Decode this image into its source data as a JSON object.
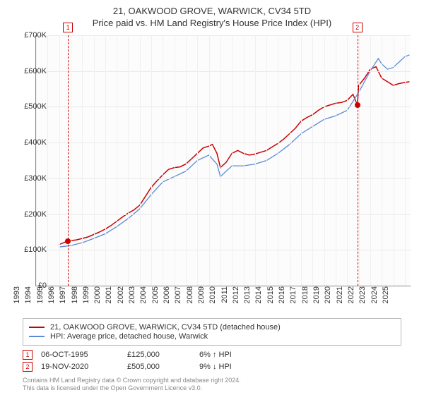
{
  "title": "21, OAKWOOD GROVE, WARWICK, CV34 5TD",
  "subtitle": "Price paid vs. HM Land Registry's House Price Index (HPI)",
  "chart": {
    "type": "line",
    "background_color": "#fcfcfc",
    "grid_color": "#eaeaea",
    "axis_color": "#888888",
    "label_fontsize": 11,
    "x": {
      "min": 1993,
      "max": 2025.5,
      "ticks": [
        1993,
        1994,
        1995,
        1996,
        1997,
        1998,
        1999,
        2000,
        2001,
        2002,
        2003,
        2004,
        2005,
        2006,
        2007,
        2008,
        2009,
        2010,
        2011,
        2012,
        2013,
        2014,
        2015,
        2016,
        2017,
        2018,
        2019,
        2020,
        2021,
        2022,
        2023,
        2024,
        2025
      ]
    },
    "y": {
      "min": 0,
      "max": 700000,
      "ticks": [
        0,
        100000,
        200000,
        300000,
        400000,
        500000,
        600000,
        700000
      ],
      "labels": [
        "£0",
        "£100K",
        "£200K",
        "£300K",
        "£400K",
        "£500K",
        "£600K",
        "£700K"
      ]
    },
    "series": [
      {
        "name": "price_paid",
        "label": "21, OAKWOOD GROVE, WARWICK, CV34 5TD (detached house)",
        "color": "#cc0000",
        "line_width": 1.5,
        "data": [
          [
            1995.0,
            115000
          ],
          [
            1995.77,
            125000
          ],
          [
            1996.5,
            128000
          ],
          [
            1997.0,
            132000
          ],
          [
            1997.5,
            136000
          ],
          [
            1998.0,
            143000
          ],
          [
            1998.5,
            150000
          ],
          [
            1999.0,
            158000
          ],
          [
            1999.5,
            168000
          ],
          [
            2000.0,
            180000
          ],
          [
            2000.5,
            192000
          ],
          [
            2001.0,
            203000
          ],
          [
            2001.5,
            212000
          ],
          [
            2002.0,
            225000
          ],
          [
            2002.5,
            250000
          ],
          [
            2003.0,
            275000
          ],
          [
            2003.5,
            293000
          ],
          [
            2004.0,
            310000
          ],
          [
            2004.5,
            325000
          ],
          [
            2005.0,
            330000
          ],
          [
            2005.5,
            332000
          ],
          [
            2006.0,
            340000
          ],
          [
            2006.5,
            355000
          ],
          [
            2007.0,
            370000
          ],
          [
            2007.5,
            385000
          ],
          [
            2008.0,
            390000
          ],
          [
            2008.3,
            395000
          ],
          [
            2008.7,
            370000
          ],
          [
            2009.0,
            330000
          ],
          [
            2009.5,
            345000
          ],
          [
            2010.0,
            370000
          ],
          [
            2010.5,
            378000
          ],
          [
            2011.0,
            370000
          ],
          [
            2011.5,
            365000
          ],
          [
            2012.0,
            368000
          ],
          [
            2012.5,
            373000
          ],
          [
            2013.0,
            378000
          ],
          [
            2013.5,
            388000
          ],
          [
            2014.0,
            398000
          ],
          [
            2014.5,
            410000
          ],
          [
            2015.0,
            425000
          ],
          [
            2015.5,
            440000
          ],
          [
            2016.0,
            460000
          ],
          [
            2016.5,
            470000
          ],
          [
            2017.0,
            478000
          ],
          [
            2017.5,
            490000
          ],
          [
            2018.0,
            500000
          ],
          [
            2018.5,
            505000
          ],
          [
            2019.0,
            510000
          ],
          [
            2019.5,
            512000
          ],
          [
            2020.0,
            518000
          ],
          [
            2020.5,
            535000
          ],
          [
            2020.88,
            505000
          ],
          [
            2021.0,
            560000
          ],
          [
            2021.5,
            580000
          ],
          [
            2022.0,
            605000
          ],
          [
            2022.5,
            612000
          ],
          [
            2023.0,
            580000
          ],
          [
            2023.5,
            570000
          ],
          [
            2024.0,
            560000
          ],
          [
            2024.5,
            565000
          ],
          [
            2025.0,
            568000
          ],
          [
            2025.4,
            570000
          ]
        ]
      },
      {
        "name": "hpi",
        "label": "HPI: Average price, detached house, Warwick",
        "color": "#5b8bd4",
        "line_width": 1.3,
        "data": [
          [
            1995.0,
            108000
          ],
          [
            1996.0,
            112000
          ],
          [
            1997.0,
            120000
          ],
          [
            1998.0,
            132000
          ],
          [
            1999.0,
            145000
          ],
          [
            2000.0,
            165000
          ],
          [
            2001.0,
            188000
          ],
          [
            2002.0,
            215000
          ],
          [
            2003.0,
            255000
          ],
          [
            2004.0,
            290000
          ],
          [
            2005.0,
            305000
          ],
          [
            2006.0,
            320000
          ],
          [
            2007.0,
            350000
          ],
          [
            2008.0,
            365000
          ],
          [
            2008.7,
            340000
          ],
          [
            2009.0,
            305000
          ],
          [
            2010.0,
            335000
          ],
          [
            2011.0,
            335000
          ],
          [
            2012.0,
            340000
          ],
          [
            2013.0,
            350000
          ],
          [
            2014.0,
            370000
          ],
          [
            2015.0,
            395000
          ],
          [
            2016.0,
            425000
          ],
          [
            2017.0,
            445000
          ],
          [
            2018.0,
            465000
          ],
          [
            2019.0,
            475000
          ],
          [
            2020.0,
            490000
          ],
          [
            2021.0,
            540000
          ],
          [
            2022.0,
            600000
          ],
          [
            2022.7,
            635000
          ],
          [
            2023.0,
            620000
          ],
          [
            2023.5,
            605000
          ],
          [
            2024.0,
            610000
          ],
          [
            2024.5,
            625000
          ],
          [
            2025.0,
            640000
          ],
          [
            2025.4,
            645000
          ]
        ]
      }
    ],
    "markers": [
      {
        "id": "1",
        "x": 1995.77,
        "y": 125000
      },
      {
        "id": "2",
        "x": 2020.88,
        "y": 505000
      }
    ]
  },
  "legend": {
    "series1": "21, OAKWOOD GROVE, WARWICK, CV34 5TD (detached house)",
    "series2": "HPI: Average price, detached house, Warwick"
  },
  "datapoints": [
    {
      "id": "1",
      "date": "06-OCT-1995",
      "price": "£125,000",
      "pct": "6% ↑ HPI"
    },
    {
      "id": "2",
      "date": "19-NOV-2020",
      "price": "£505,000",
      "pct": "9% ↓ HPI"
    }
  ],
  "footer": {
    "line1": "Contains HM Land Registry data © Crown copyright and database right 2024.",
    "line2": "This data is licensed under the Open Government Licence v3.0."
  }
}
